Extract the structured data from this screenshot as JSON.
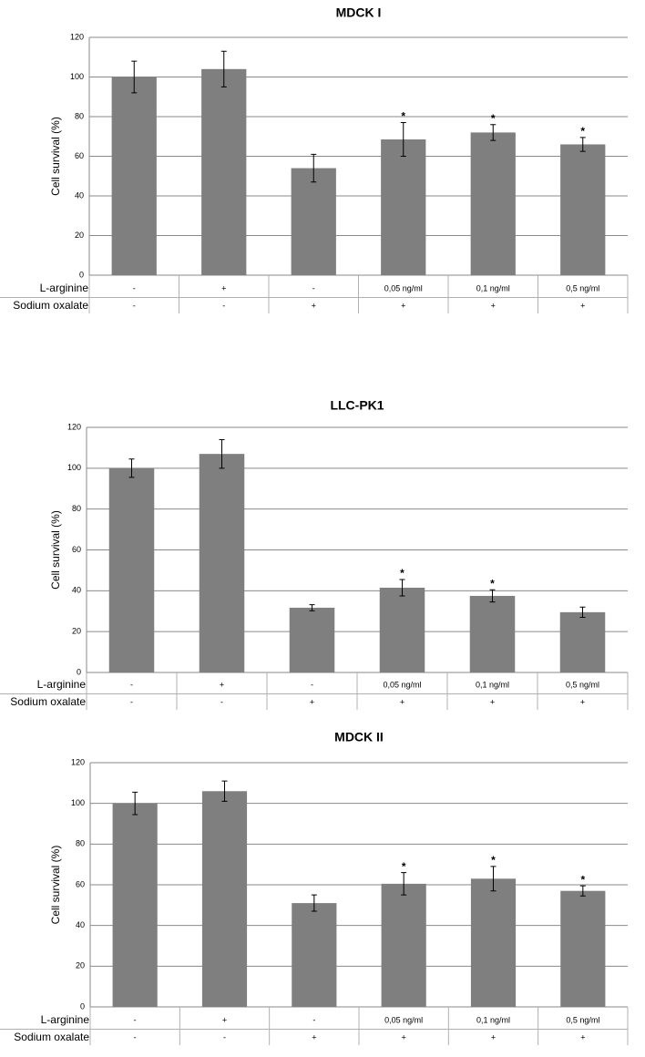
{
  "chart_data": [
    {
      "type": "bar",
      "title": "MDCK I",
      "y_label": "Cell survival (%)",
      "values": [
        100,
        104,
        54,
        68.5,
        72,
        66
      ],
      "errors": [
        8,
        9,
        7,
        8.5,
        4,
        3.5
      ],
      "significance": [
        null,
        null,
        null,
        "*",
        "*",
        "*"
      ],
      "color": "#7f7f7f",
      "ylim": [
        0,
        120
      ],
      "yticks": [
        0,
        20,
        40,
        60,
        80,
        100,
        120
      ],
      "grid": true,
      "table": [
        {
          "label": "L-arginine",
          "cells": [
            "-",
            "+",
            "-",
            "0,05 ng/ml",
            "0,1 ng/ml",
            "0,5 ng/ml"
          ]
        },
        {
          "label": "Sodium oxalate",
          "cells": [
            "-",
            "-",
            "+",
            "+",
            "+",
            "+"
          ]
        }
      ]
    },
    {
      "type": "bar",
      "title": "LLC-PK1",
      "y_label": "Cell survival (%)",
      "values": [
        100,
        107,
        31.7,
        41.5,
        37.5,
        29.5
      ],
      "errors": [
        4.5,
        7,
        1.5,
        4,
        3,
        2.5
      ],
      "significance": [
        null,
        null,
        null,
        "*",
        "*",
        null
      ],
      "color": "#7f7f7f",
      "ylim": [
        0,
        120
      ],
      "yticks": [
        0,
        20,
        40,
        60,
        80,
        100,
        120
      ],
      "grid": true,
      "table": [
        {
          "label": "L-arginine",
          "cells": [
            "-",
            "+",
            "-",
            "0,05 ng/ml",
            "0,1 ng/ml",
            "0,5 ng/ml"
          ]
        },
        {
          "label": "Sodium oxalate",
          "cells": [
            "-",
            "-",
            "+",
            "+",
            "+",
            "+"
          ]
        }
      ]
    },
    {
      "type": "bar",
      "title": "MDCK II",
      "y_label": "Cell survival (%)",
      "values": [
        100,
        106,
        51,
        60.5,
        63,
        57
      ],
      "errors": [
        5.5,
        5,
        4,
        5.5,
        6,
        2.5
      ],
      "significance": [
        null,
        null,
        null,
        "*",
        "*",
        "*"
      ],
      "color": "#7f7f7f",
      "ylim": [
        0,
        120
      ],
      "yticks": [
        0,
        20,
        40,
        60,
        80,
        100,
        120
      ],
      "grid": true,
      "table": [
        {
          "label": "L-arginine",
          "cells": [
            "-",
            "+",
            "-",
            "0,05 ng/ml",
            "0,1 ng/ml",
            "0,5 ng/ml"
          ]
        },
        {
          "label": "Sodium oxalate",
          "cells": [
            "-",
            "-",
            "+",
            "+",
            "+",
            "+"
          ]
        }
      ]
    }
  ]
}
